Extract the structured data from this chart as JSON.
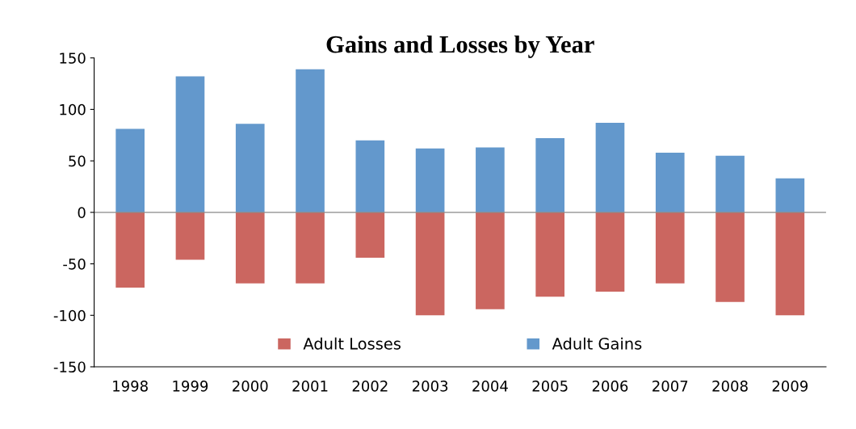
{
  "chart_data": {
    "type": "bar",
    "title": "Gains and Losses by Year",
    "stacked": true,
    "categories": [
      "1998",
      "1999",
      "2000",
      "2001",
      "2002",
      "2003",
      "2004",
      "2005",
      "2006",
      "2007",
      "2008",
      "2009"
    ],
    "series": [
      {
        "name": "Adult Losses",
        "color": "#cb6660",
        "values": [
          -73,
          -46,
          -69,
          -69,
          -44,
          -100,
          -94,
          -82,
          -77,
          -69,
          -87,
          -100
        ]
      },
      {
        "name": "Adult Gains",
        "color": "#6398cc",
        "values": [
          81,
          132,
          86,
          139,
          70,
          62,
          63,
          72,
          87,
          58,
          55,
          33
        ]
      }
    ],
    "ylim": [
      -150,
      150
    ],
    "yticks": [
      -150,
      -100,
      -50,
      0,
      50,
      100,
      150
    ],
    "grid": false,
    "ref_lines": [
      {
        "axis": "y",
        "value": 0,
        "color": "#888888"
      }
    ],
    "legend": "bottom"
  }
}
